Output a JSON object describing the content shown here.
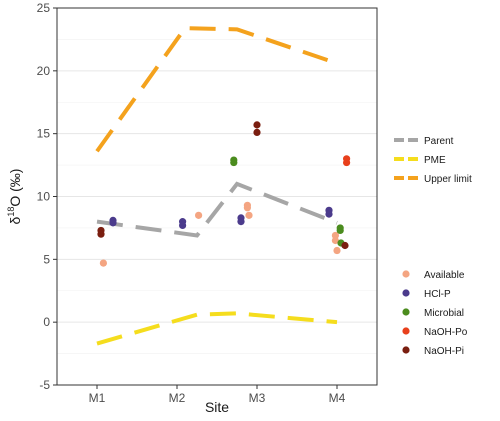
{
  "chart_data": {
    "type": "scatter",
    "xlabel": "Site",
    "ylabel": "δ18O (‰)",
    "ylabel_parts": {
      "delta": "δ",
      "superscript": "18",
      "rest": "O (‰)"
    },
    "categories": [
      "M1",
      "M2",
      "M3",
      "M4"
    ],
    "ylim": [
      -5,
      25
    ],
    "yticks": [
      "-5",
      "0",
      "5",
      "10",
      "15",
      "20",
      "25"
    ],
    "grid": true,
    "legend_position": "right",
    "line_series": [
      {
        "name": "Parent",
        "color": "#a6a6a6",
        "points": [
          [
            1,
            8.0
          ],
          [
            2.25,
            6.9
          ],
          [
            2.75,
            11.0
          ],
          [
            4.0,
            7.9
          ]
        ]
      },
      {
        "name": "PME",
        "color": "#f5dd1d",
        "points": [
          [
            1,
            -1.7
          ],
          [
            2.25,
            0.6
          ],
          [
            2.75,
            0.7
          ],
          [
            4.0,
            0.0
          ]
        ]
      },
      {
        "name": "Upper limit",
        "color": "#f4a21d",
        "points": [
          [
            1,
            13.6
          ],
          [
            2.1,
            23.4
          ],
          [
            2.75,
            23.3
          ],
          [
            4.0,
            20.6
          ]
        ]
      }
    ],
    "point_series": [
      {
        "name": "Available",
        "color": "#f4a582",
        "points": [
          [
            1.08,
            4.7
          ],
          [
            2.27,
            8.5
          ],
          [
            2.88,
            9.3
          ],
          [
            2.88,
            9.1
          ],
          [
            2.9,
            8.5
          ],
          [
            3.98,
            6.9
          ],
          [
            3.98,
            6.5
          ],
          [
            4.0,
            5.7
          ]
        ]
      },
      {
        "name": "HCl-P",
        "color": "#4b3b8c",
        "points": [
          [
            1.2,
            8.1
          ],
          [
            1.2,
            7.9
          ],
          [
            2.07,
            8.0
          ],
          [
            2.07,
            7.7
          ],
          [
            2.8,
            8.3
          ],
          [
            2.8,
            8.0
          ],
          [
            3.9,
            8.9
          ],
          [
            3.9,
            8.6
          ]
        ]
      },
      {
        "name": "Microbial",
        "color": "#4b8c1e",
        "points": [
          [
            2.71,
            12.9
          ],
          [
            2.71,
            12.7
          ],
          [
            4.04,
            7.5
          ],
          [
            4.04,
            7.3
          ],
          [
            4.05,
            6.3
          ]
        ]
      },
      {
        "name": "NaOH-Po",
        "color": "#e8401c",
        "points": [
          [
            4.12,
            13.0
          ],
          [
            4.12,
            12.7
          ]
        ]
      },
      {
        "name": "NaOH-Pi",
        "color": "#7a1e10",
        "points": [
          [
            1.05,
            7.3
          ],
          [
            1.05,
            7.0
          ],
          [
            3.0,
            15.7
          ],
          [
            3.0,
            15.1
          ],
          [
            4.1,
            6.1
          ]
        ]
      }
    ]
  }
}
